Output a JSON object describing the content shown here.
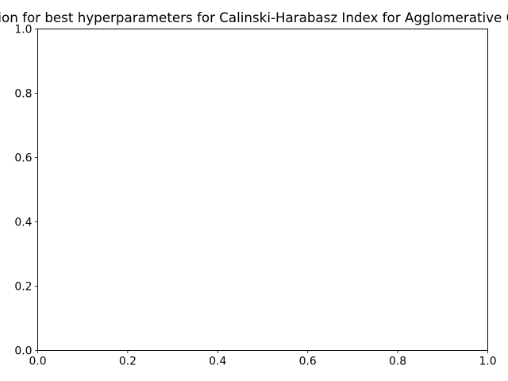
{
  "chart_data": {
    "type": "scatter",
    "title": "Visualization for best hyperparameters for Calinski-Harabasz Index for Agglomerative Clustering",
    "xlabel": "",
    "ylabel": "",
    "xlim": [
      0.0,
      1.0
    ],
    "ylim": [
      0.0,
      1.0
    ],
    "x_ticks": [
      "0.0",
      "0.2",
      "0.4",
      "0.6",
      "0.8",
      "1.0"
    ],
    "y_ticks": [
      "0.0",
      "0.2",
      "0.4",
      "0.6",
      "0.8",
      "1.0"
    ],
    "series": [],
    "grid": false,
    "legend": "none"
  },
  "colors": {
    "axis": "#000000",
    "background": "#ffffff"
  }
}
